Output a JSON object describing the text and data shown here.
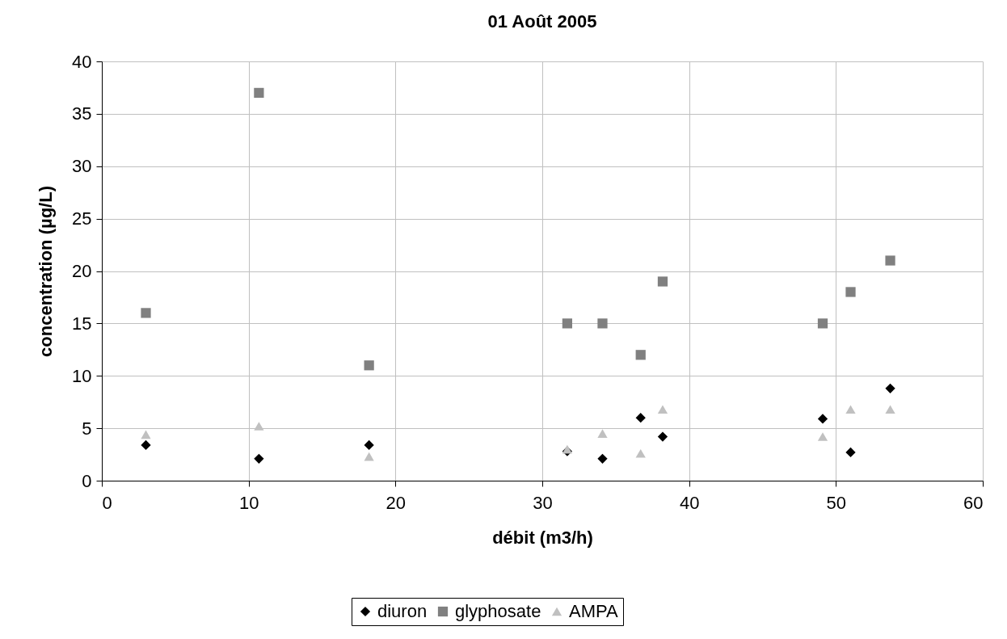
{
  "chart_data": {
    "type": "scatter",
    "title": "01 Août 2005",
    "xlabel": "débit (m3/h)",
    "ylabel": "concentration (µg/L)",
    "x": [
      3.0,
      10.7,
      18.2,
      31.7,
      34.1,
      36.7,
      38.2,
      49.1,
      51.0,
      53.7
    ],
    "series": [
      {
        "name": "diuron",
        "color": "#000000",
        "marker": "diamond",
        "values": [
          3.4,
          2.1,
          3.4,
          2.8,
          2.1,
          6.0,
          4.2,
          5.9,
          2.7,
          8.8
        ]
      },
      {
        "name": "glyphosate",
        "color": "#808080",
        "marker": "square",
        "values": [
          16,
          37,
          11,
          15,
          15,
          12,
          19,
          15,
          18,
          21
        ]
      },
      {
        "name": "AMPA",
        "color": "#c0c0c0",
        "marker": "triangle",
        "values": [
          4.4,
          5.2,
          2.3,
          3.0,
          4.5,
          2.6,
          6.8,
          4.2,
          6.8,
          6.8
        ]
      }
    ],
    "xlim": [
      0,
      60
    ],
    "xticks": [
      0,
      10,
      20,
      30,
      40,
      50,
      60
    ],
    "ylim": [
      0,
      40
    ],
    "yticks": [
      0,
      5,
      10,
      15,
      20,
      25,
      30,
      35,
      40
    ],
    "grid": true,
    "legend": "bottom"
  }
}
